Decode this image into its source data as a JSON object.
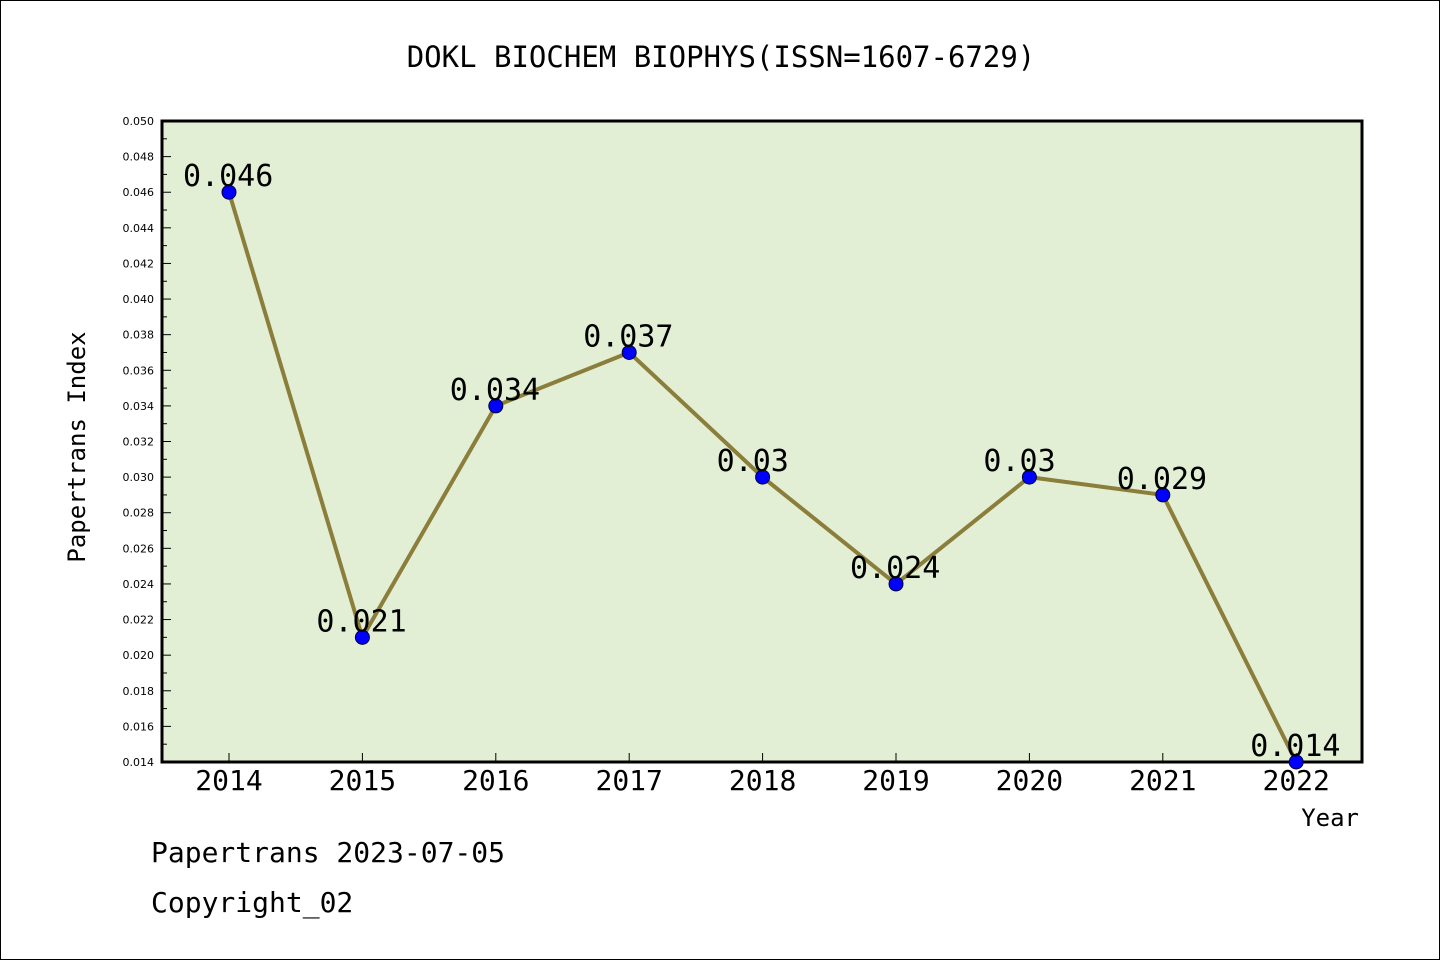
{
  "chart_data": {
    "type": "line",
    "title": "DOKL BIOCHEM BIOPHYS(ISSN=1607-6729)",
    "xlabel": "Year",
    "ylabel": "Papertrans Index",
    "categories": [
      "2014",
      "2015",
      "2016",
      "2017",
      "2018",
      "2019",
      "2020",
      "2021",
      "2022"
    ],
    "values": [
      0.046,
      0.021,
      0.034,
      0.037,
      0.03,
      0.024,
      0.03,
      0.029,
      0.014
    ],
    "data_labels": [
      "0.046",
      "0.021",
      "0.034",
      "0.037",
      "0.03",
      "0.024",
      "0.03",
      "0.029",
      "0.014"
    ],
    "ylim": [
      0.014,
      0.05
    ],
    "yticks": [
      "0.014",
      "0.016",
      "0.018",
      "0.020",
      "0.022",
      "0.024",
      "0.026",
      "0.028",
      "0.030",
      "0.032",
      "0.034",
      "0.036",
      "0.038",
      "0.040",
      "0.042",
      "0.044",
      "0.046",
      "0.048",
      "0.050"
    ],
    "grid": false,
    "colors": {
      "line": "#8B7D3A",
      "marker": "#0000FF",
      "plot_background": "#E2EFD5"
    }
  },
  "footer": {
    "date_line": "Papertrans 2023-07-05",
    "copyright_line": "Copyright_02"
  }
}
